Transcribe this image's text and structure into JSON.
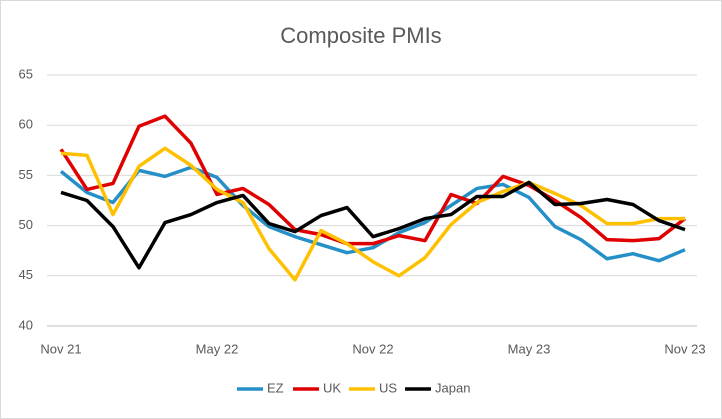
{
  "chart_data": {
    "type": "line",
    "title": "Composite PMIs",
    "categories": [
      "Nov 21",
      null,
      null,
      null,
      null,
      null,
      "May 22",
      null,
      null,
      null,
      null,
      null,
      "Nov 22",
      null,
      null,
      null,
      null,
      null,
      "May 23",
      null,
      null,
      null,
      null,
      null,
      "Nov 23"
    ],
    "series": [
      {
        "name": "EZ",
        "color": "#2590c7",
        "values": [
          55.4,
          53.3,
          52.3,
          55.5,
          54.9,
          55.8,
          54.8,
          52.0,
          49.9,
          48.9,
          48.1,
          47.3,
          47.8,
          49.3,
          50.3,
          52.0,
          53.7,
          54.1,
          52.8,
          49.9,
          48.6,
          46.7,
          47.2,
          46.5,
          47.6
        ]
      },
      {
        "name": "UK",
        "color": "#e00000",
        "values": [
          57.6,
          53.6,
          54.2,
          59.9,
          60.9,
          58.2,
          53.1,
          53.7,
          52.1,
          49.6,
          49.1,
          48.2,
          48.2,
          49.0,
          48.5,
          53.1,
          52.2,
          54.9,
          54.0,
          52.5,
          50.8,
          48.6,
          48.5,
          48.7,
          50.7
        ]
      },
      {
        "name": "US",
        "color": "#ffc000",
        "values": [
          57.2,
          57.0,
          51.1,
          55.9,
          57.7,
          56.0,
          53.6,
          52.3,
          47.7,
          44.6,
          49.5,
          48.2,
          46.4,
          45.0,
          46.8,
          50.1,
          52.3,
          53.4,
          54.3,
          53.2,
          52.0,
          50.2,
          50.2,
          50.7,
          50.7
        ]
      },
      {
        "name": "Japan",
        "color": "#000000",
        "values": [
          53.3,
          52.5,
          49.9,
          45.8,
          50.3,
          51.1,
          52.3,
          53.0,
          50.2,
          49.4,
          51.0,
          51.8,
          48.9,
          49.7,
          50.7,
          51.1,
          52.9,
          52.9,
          54.3,
          52.1,
          52.2,
          52.6,
          52.1,
          50.5,
          49.6
        ]
      }
    ],
    "ylim": [
      40,
      65
    ],
    "yticks": [
      40,
      45,
      50,
      55,
      60,
      65
    ],
    "grid": true,
    "legend": "bottom"
  }
}
